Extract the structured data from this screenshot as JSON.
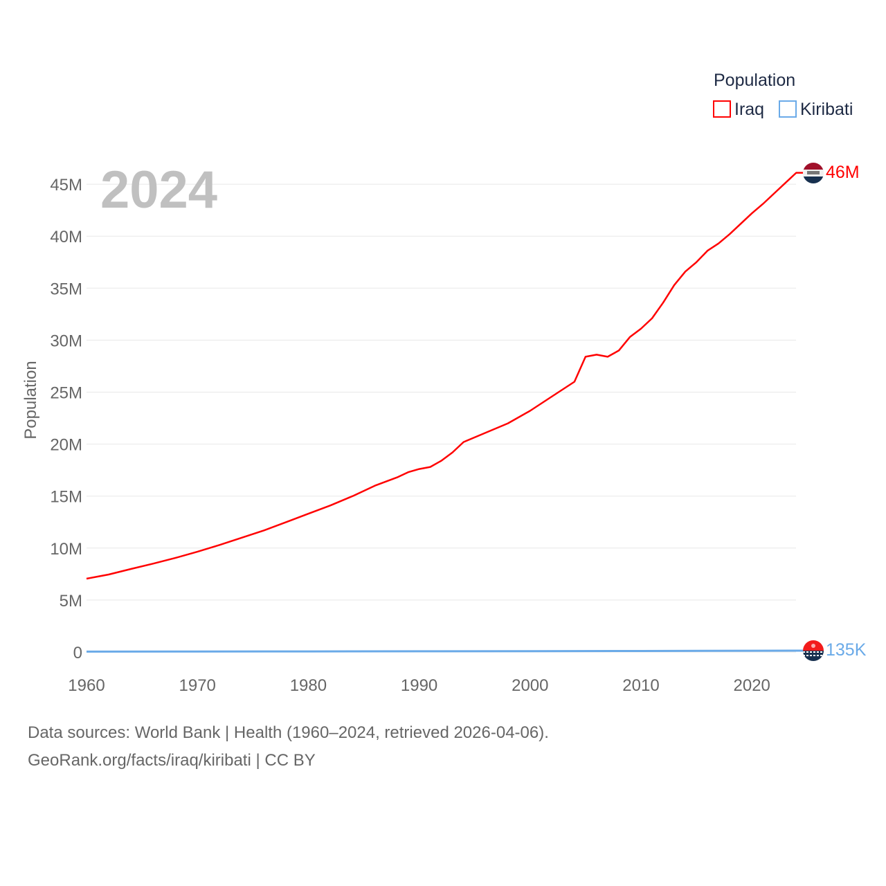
{
  "chart_data": {
    "type": "line",
    "year_label": "2024",
    "ylabel": "Population",
    "legend_title": "Population",
    "legend_position": "top-right",
    "xlim": [
      1960,
      2024
    ],
    "ylim": [
      0,
      47000000
    ],
    "x_ticks": [
      "1960",
      "1970",
      "1980",
      "1990",
      "2000",
      "2010",
      "2020"
    ],
    "y_ticks": [
      {
        "v": 0,
        "label": "0"
      },
      {
        "v": 5000000,
        "label": "5M"
      },
      {
        "v": 10000000,
        "label": "10M"
      },
      {
        "v": 15000000,
        "label": "15M"
      },
      {
        "v": 20000000,
        "label": "20M"
      },
      {
        "v": 25000000,
        "label": "25M"
      },
      {
        "v": 30000000,
        "label": "30M"
      },
      {
        "v": 35000000,
        "label": "35M"
      },
      {
        "v": 40000000,
        "label": "40M"
      },
      {
        "v": 45000000,
        "label": "45M"
      }
    ],
    "grid": true,
    "series": [
      {
        "name": "Iraq",
        "color": "#ff0000",
        "end_label": "46M",
        "flag": "iraq-flag-icon",
        "x": [
          1960,
          1961,
          1962,
          1964,
          1966,
          1968,
          1970,
          1972,
          1974,
          1976,
          1978,
          1980,
          1982,
          1984,
          1986,
          1988,
          1989,
          1990,
          1991,
          1992,
          1993,
          1994,
          1996,
          1998,
          2000,
          2002,
          2004,
          2005,
          2006,
          2007,
          2008,
          2009,
          2010,
          2011,
          2012,
          2013,
          2014,
          2015,
          2016,
          2017,
          2018,
          2019,
          2020,
          2021,
          2022,
          2023,
          2024
        ],
        "values": [
          7.06,
          7.26,
          7.46,
          7.99,
          8.5,
          9.05,
          9.65,
          10.3,
          11.0,
          11.7,
          12.5,
          13.3,
          14.1,
          15.0,
          16.0,
          16.8,
          17.3,
          17.6,
          17.8,
          18.4,
          19.2,
          20.2,
          21.1,
          22.0,
          23.2,
          24.6,
          26.0,
          28.4,
          28.6,
          28.4,
          29.0,
          30.3,
          31.1,
          32.1,
          33.6,
          35.3,
          36.6,
          37.5,
          38.6,
          39.3,
          40.2,
          41.2,
          42.2,
          43.1,
          44.1,
          45.1,
          46.1
        ],
        "unit": "millions"
      },
      {
        "name": "Kiribati",
        "color": "#6aaae8",
        "end_label": "135K",
        "flag": "kiribati-flag-icon",
        "x": [
          1960,
          1970,
          1980,
          1990,
          2000,
          2010,
          2020,
          2024
        ],
        "values": [
          0.041,
          0.051,
          0.059,
          0.072,
          0.085,
          0.103,
          0.126,
          0.135
        ],
        "unit": "millions"
      }
    ]
  },
  "footer": {
    "line1": "Data sources: World Bank | Health (1960–2024, retrieved 2026-04-06).",
    "line2": "GeoRank.org/facts/iraq/kiribati | CC BY"
  }
}
